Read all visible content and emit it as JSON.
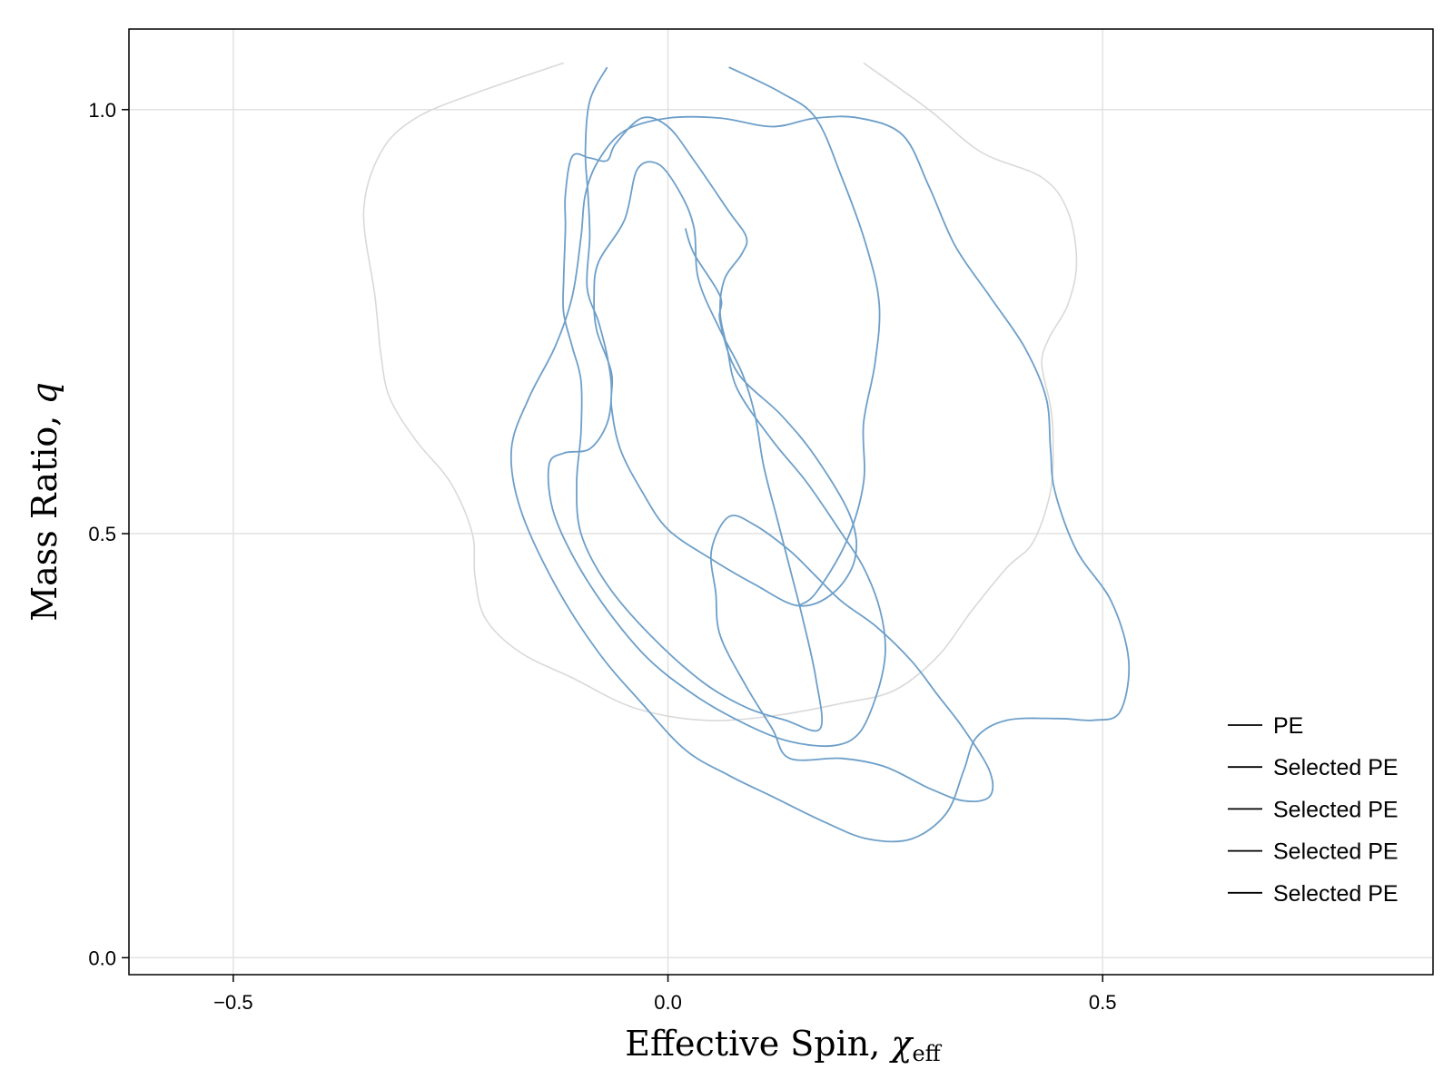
{
  "chart_data": {
    "type": "line",
    "xlabel": "Effective Spin, ",
    "xlabel_symbol": "χ",
    "xlabel_subscript": "eff",
    "ylabel": "Mass Ratio, ",
    "ylabel_symbol": "q",
    "xlim": [
      -0.62,
      0.88
    ],
    "ylim": [
      -0.02,
      1.095
    ],
    "xticks": [
      -0.5,
      0.0,
      0.5
    ],
    "xtick_labels": [
      "−0.5",
      "0.0",
      "0.5"
    ],
    "yticks": [
      0.0,
      0.5,
      1.0
    ],
    "ytick_labels": [
      "0.0",
      "0.5",
      "1.0"
    ],
    "grid": true,
    "legend_position": "bottom-right",
    "colors": {
      "pe": "#d9d9d9",
      "selected": "#6d9fc9",
      "legend_line": "#000000",
      "grid": "#e2e2e2"
    },
    "series": [
      {
        "name": "PE",
        "kind": "pe",
        "closed": false,
        "points": [
          [
            -0.12,
            1.055
          ],
          [
            -0.22,
            1.02
          ],
          [
            -0.29,
            0.99
          ],
          [
            -0.33,
            0.95
          ],
          [
            -0.35,
            0.88
          ],
          [
            -0.337,
            0.78
          ],
          [
            -0.33,
            0.71
          ],
          [
            -0.32,
            0.66
          ],
          [
            -0.29,
            0.61
          ],
          [
            -0.25,
            0.56
          ],
          [
            -0.225,
            0.5
          ],
          [
            -0.222,
            0.45
          ],
          [
            -0.21,
            0.4
          ],
          [
            -0.17,
            0.36
          ],
          [
            -0.11,
            0.33
          ],
          [
            -0.04,
            0.295
          ],
          [
            0.04,
            0.28
          ],
          [
            0.12,
            0.285
          ],
          [
            0.2,
            0.3
          ],
          [
            0.26,
            0.315
          ],
          [
            0.31,
            0.355
          ],
          [
            0.35,
            0.41
          ],
          [
            0.39,
            0.46
          ],
          [
            0.42,
            0.49
          ],
          [
            0.44,
            0.55
          ],
          [
            0.443,
            0.61
          ],
          [
            0.44,
            0.65
          ],
          [
            0.43,
            0.7
          ],
          [
            0.438,
            0.73
          ],
          [
            0.46,
            0.77
          ],
          [
            0.47,
            0.82
          ],
          [
            0.46,
            0.88
          ],
          [
            0.43,
            0.92
          ],
          [
            0.36,
            0.95
          ],
          [
            0.3,
            1.0
          ],
          [
            0.225,
            1.055
          ]
        ]
      },
      {
        "name": "Selected PE",
        "kind": "selected",
        "closed": false,
        "points": [
          [
            -0.07,
            1.05
          ],
          [
            -0.09,
            1.01
          ],
          [
            -0.095,
            0.95
          ],
          [
            -0.092,
            0.9
          ],
          [
            -0.09,
            0.85
          ],
          [
            -0.093,
            0.79
          ],
          [
            -0.08,
            0.75
          ],
          [
            -0.07,
            0.71
          ],
          [
            -0.065,
            0.67
          ],
          [
            -0.07,
            0.63
          ],
          [
            -0.09,
            0.6
          ],
          [
            -0.12,
            0.595
          ],
          [
            -0.137,
            0.58
          ],
          [
            -0.13,
            0.52
          ],
          [
            -0.09,
            0.44
          ],
          [
            -0.03,
            0.36
          ],
          [
            0.03,
            0.31
          ],
          [
            0.09,
            0.275
          ],
          [
            0.14,
            0.255
          ],
          [
            0.19,
            0.25
          ],
          [
            0.22,
            0.265
          ],
          [
            0.24,
            0.31
          ],
          [
            0.25,
            0.36
          ],
          [
            0.244,
            0.41
          ],
          [
            0.225,
            0.46
          ],
          [
            0.2,
            0.5
          ],
          [
            0.16,
            0.56
          ],
          [
            0.12,
            0.61
          ],
          [
            0.08,
            0.67
          ],
          [
            0.068,
            0.72
          ],
          [
            0.06,
            0.76
          ],
          [
            0.065,
            0.8
          ],
          [
            0.085,
            0.83
          ],
          [
            0.09,
            0.85
          ],
          [
            0.07,
            0.88
          ],
          [
            0.03,
            0.94
          ],
          [
            0.0,
            0.98
          ],
          [
            -0.03,
            0.99
          ],
          [
            -0.06,
            0.96
          ],
          [
            -0.07,
            0.94
          ],
          [
            -0.09,
            0.943
          ],
          [
            -0.11,
            0.945
          ],
          [
            -0.118,
            0.9
          ],
          [
            -0.118,
            0.86
          ],
          [
            -0.12,
            0.8
          ],
          [
            -0.12,
            0.76
          ],
          [
            -0.11,
            0.72
          ],
          [
            -0.1,
            0.68
          ],
          [
            -0.1,
            0.62
          ],
          [
            -0.105,
            0.56
          ],
          [
            -0.1,
            0.5
          ],
          [
            -0.07,
            0.44
          ],
          [
            -0.02,
            0.38
          ],
          [
            0.04,
            0.325
          ],
          [
            0.09,
            0.295
          ],
          [
            0.135,
            0.28
          ],
          [
            0.175,
            0.27
          ],
          [
            0.17,
            0.33
          ],
          [
            0.155,
            0.4
          ],
          [
            0.14,
            0.46
          ],
          [
            0.125,
            0.52
          ],
          [
            0.11,
            0.58
          ],
          [
            0.1,
            0.64
          ],
          [
            0.085,
            0.69
          ],
          [
            0.06,
            0.74
          ],
          [
            0.035,
            0.8
          ],
          [
            0.03,
            0.86
          ],
          [
            0.015,
            0.9
          ],
          [
            -0.01,
            0.935
          ],
          [
            -0.035,
            0.93
          ],
          [
            -0.05,
            0.87
          ],
          [
            -0.08,
            0.82
          ],
          [
            -0.085,
            0.78
          ],
          [
            -0.082,
            0.74
          ],
          [
            -0.065,
            0.69
          ],
          [
            -0.065,
            0.65
          ],
          [
            -0.055,
            0.6
          ],
          [
            -0.03,
            0.55
          ],
          [
            0.0,
            0.505
          ],
          [
            0.05,
            0.47
          ],
          [
            0.1,
            0.44
          ],
          [
            0.15,
            0.415
          ],
          [
            0.19,
            0.43
          ],
          [
            0.215,
            0.47
          ],
          [
            0.21,
            0.52
          ],
          [
            0.17,
            0.59
          ],
          [
            0.13,
            0.64
          ],
          [
            0.08,
            0.69
          ],
          [
            0.06,
            0.75
          ],
          [
            0.06,
            0.78
          ],
          [
            0.03,
            0.83
          ],
          [
            0.02,
            0.86
          ]
        ]
      },
      {
        "name": "Selected PE",
        "kind": "selected",
        "closed": false,
        "points": [
          [
            0.07,
            1.05
          ],
          [
            0.13,
            1.02
          ],
          [
            0.17,
            0.99
          ],
          [
            0.2,
            0.92
          ],
          [
            0.228,
            0.84
          ],
          [
            0.243,
            0.77
          ],
          [
            0.238,
            0.7
          ],
          [
            0.225,
            0.63
          ],
          [
            0.225,
            0.56
          ],
          [
            0.205,
            0.49
          ],
          [
            0.17,
            0.43
          ],
          [
            0.15,
            0.415
          ]
        ]
      },
      {
        "name": "Selected PE",
        "kind": "selected",
        "closed": true,
        "points": [
          [
            -0.08,
            0.94
          ],
          [
            -0.05,
            0.975
          ],
          [
            0.0,
            0.99
          ],
          [
            0.06,
            0.99
          ],
          [
            0.12,
            0.98
          ],
          [
            0.17,
            0.99
          ],
          [
            0.22,
            0.99
          ],
          [
            0.27,
            0.97
          ],
          [
            0.3,
            0.91
          ],
          [
            0.33,
            0.84
          ],
          [
            0.37,
            0.78
          ],
          [
            0.41,
            0.72
          ],
          [
            0.435,
            0.66
          ],
          [
            0.44,
            0.6
          ],
          [
            0.445,
            0.55
          ],
          [
            0.47,
            0.48
          ],
          [
            0.51,
            0.42
          ],
          [
            0.53,
            0.35
          ],
          [
            0.52,
            0.29
          ],
          [
            0.49,
            0.28
          ],
          [
            0.45,
            0.282
          ],
          [
            0.39,
            0.28
          ],
          [
            0.355,
            0.26
          ],
          [
            0.34,
            0.22
          ],
          [
            0.32,
            0.17
          ],
          [
            0.28,
            0.14
          ],
          [
            0.23,
            0.14
          ],
          [
            0.18,
            0.16
          ],
          [
            0.12,
            0.19
          ],
          [
            0.07,
            0.215
          ],
          [
            0.02,
            0.245
          ],
          [
            -0.03,
            0.3
          ],
          [
            -0.08,
            0.36
          ],
          [
            -0.13,
            0.44
          ],
          [
            -0.17,
            0.53
          ],
          [
            -0.18,
            0.6
          ],
          [
            -0.16,
            0.66
          ],
          [
            -0.13,
            0.72
          ],
          [
            -0.11,
            0.78
          ],
          [
            -0.1,
            0.85
          ],
          [
            -0.095,
            0.9
          ]
        ]
      },
      {
        "name": "Selected PE",
        "kind": "selected",
        "closed": true,
        "points": [
          [
            0.07,
            0.52
          ],
          [
            0.1,
            0.51
          ],
          [
            0.14,
            0.48
          ],
          [
            0.17,
            0.45
          ],
          [
            0.2,
            0.42
          ],
          [
            0.24,
            0.39
          ],
          [
            0.28,
            0.35
          ],
          [
            0.31,
            0.31
          ],
          [
            0.34,
            0.27
          ],
          [
            0.37,
            0.22
          ],
          [
            0.37,
            0.19
          ],
          [
            0.34,
            0.185
          ],
          [
            0.3,
            0.2
          ],
          [
            0.25,
            0.225
          ],
          [
            0.2,
            0.235
          ],
          [
            0.14,
            0.235
          ],
          [
            0.12,
            0.27
          ],
          [
            0.09,
            0.32
          ],
          [
            0.06,
            0.38
          ],
          [
            0.055,
            0.43
          ],
          [
            0.05,
            0.48
          ]
        ]
      }
    ]
  }
}
